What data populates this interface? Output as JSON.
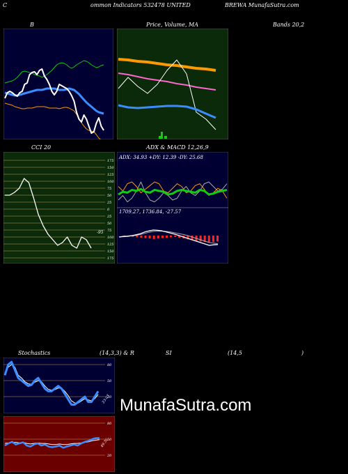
{
  "header": {
    "left": "C",
    "mid1": "ommon  Indicators 532478  UNITED",
    "right": "BREWA MunafaSutra.com"
  },
  "panel_titles": {
    "b": "B",
    "price": "Price,  Volume,  MA",
    "bands": "Bands 20,2",
    "cci": "CCI 20",
    "adx_macd": "ADX  & MACD 12,26,9",
    "stoch": "Stochastics",
    "stoch_params": "(14,3,3) & R",
    "si": "SI",
    "si_params": "(14,5",
    "close_paren": ")"
  },
  "adx_readout": "ADX: 34.93  +DY: 12.39  -DY: 25.68",
  "macd_readout": "1709.27,  1736.84,  -27.57",
  "cci_value_label": "-95",
  "cci_ticks": [
    "175",
    "150",
    "125",
    "100",
    "75",
    "50",
    "25",
    "0",
    "25",
    "50",
    "75",
    "100",
    "125",
    "150",
    "175"
  ],
  "stoch_ticks": [
    "80",
    "50",
    "20"
  ],
  "stoch_value_label": "23.03",
  "rsi_ticks": [
    "80",
    "50",
    "20"
  ],
  "rsi_value_label": "49.36",
  "watermark": "MunafaSutra.com",
  "colors": {
    "navy": "#000033",
    "green_panel": "#0a2a0a",
    "dark_red": "#6b0000",
    "blue_line": "#3a8cff",
    "orange_line": "#ff9900",
    "green_line": "#11cc11"
  },
  "chart_data": [
    {
      "id": "bollinger",
      "type": "line",
      "series": [
        {
          "role": "upper",
          "values": [
            78,
            77,
            76,
            75,
            73,
            70,
            66,
            62,
            61,
            62,
            63,
            64,
            66,
            67,
            68,
            70,
            68,
            66,
            63,
            60,
            56,
            52,
            50,
            49,
            50,
            52,
            55,
            57,
            55,
            52,
            50,
            48,
            46,
            47,
            49,
            52,
            54,
            56,
            55,
            53,
            52
          ]
        },
        {
          "role": "middle",
          "values": [
            92,
            93,
            94,
            95,
            96,
            96,
            95,
            94,
            93,
            92,
            91,
            90,
            89,
            88,
            88,
            88,
            87,
            86,
            86,
            86,
            86,
            87,
            88,
            88,
            88,
            87,
            86,
            87,
            88,
            91,
            94,
            98,
            102,
            106,
            109,
            112,
            115,
            118,
            120,
            121,
            122
          ]
        },
        {
          "role": "lower",
          "values": [
            107,
            108,
            109,
            110,
            112,
            113,
            114,
            115,
            115,
            114,
            114,
            114,
            113,
            112,
            112,
            112,
            112,
            113,
            114,
            114,
            114,
            114,
            115,
            114,
            113,
            113,
            114,
            116,
            118,
            123,
            130,
            135,
            140,
            144,
            146,
            147,
            148,
            152,
            157,
            160,
            162
          ]
        },
        {
          "role": "close",
          "values": [
            100,
            92,
            90,
            92,
            95,
            97,
            92,
            90,
            80,
            78,
            66,
            63,
            62,
            66,
            60,
            58,
            68,
            73,
            80,
            90,
            95,
            90,
            80,
            82,
            84,
            86,
            90,
            96,
            104,
            120,
            130,
            134,
            124,
            130,
            140,
            150,
            148,
            136,
            128,
            140,
            146
          ]
        }
      ]
    },
    {
      "id": "price_ma",
      "type": "line",
      "series": [
        {
          "role": "ma_long",
          "values": [
            44,
            45,
            47,
            48,
            50,
            52,
            53,
            55,
            57,
            58,
            60
          ]
        },
        {
          "role": "ma_mid",
          "values": [
            64,
            66,
            69,
            72,
            74,
            76,
            79,
            81,
            84,
            86,
            88
          ]
        },
        {
          "role": "close",
          "values": [
            86,
            70,
            83,
            93,
            80,
            60,
            45,
            65,
            120,
            130,
            145
          ]
        },
        {
          "role": "ma_short",
          "values": [
            110,
            113,
            114,
            113,
            112,
            111,
            111,
            112,
            116,
            122,
            128
          ]
        }
      ]
    },
    {
      "id": "cci",
      "type": "line",
      "values": [
        50,
        50,
        60,
        75,
        110,
        95,
        40,
        -20,
        -60,
        -90,
        -110,
        -130,
        -120,
        -100,
        -130,
        -140,
        -100,
        -110,
        -140
      ]
    },
    {
      "id": "adx_dmi",
      "type": "line",
      "series": [
        {
          "role": "adx",
          "values": [
            30,
            33,
            32,
            35,
            34,
            36,
            33,
            32,
            35,
            34,
            33,
            30,
            31,
            34,
            35,
            34,
            33,
            32,
            35,
            34,
            30,
            31,
            33,
            34,
            35
          ]
        },
        {
          "role": "plus_di",
          "values": [
            20,
            25,
            18,
            22,
            30,
            40,
            28,
            20,
            18,
            22,
            28,
            25,
            20,
            22,
            30,
            35,
            28,
            25,
            30,
            38,
            40,
            35,
            30,
            32,
            38
          ]
        },
        {
          "role": "minus_di",
          "values": [
            35,
            30,
            38,
            40,
            35,
            28,
            32,
            36,
            40,
            38,
            30,
            28,
            33,
            38,
            35,
            28,
            30,
            36,
            38,
            32,
            25,
            28,
            33,
            30,
            22
          ]
        }
      ]
    },
    {
      "id": "macd",
      "type": "line",
      "series": [
        {
          "role": "macd",
          "values": [
            0,
            2,
            3,
            5,
            8,
            12,
            18,
            22,
            25,
            24,
            22,
            18,
            14,
            10,
            5,
            0,
            -5,
            -10,
            -15,
            -20,
            -25,
            -30,
            -28,
            -27
          ]
        },
        {
          "role": "signal",
          "values": [
            0,
            1,
            2,
            4,
            6,
            9,
            13,
            17,
            20,
            21,
            21,
            20,
            18,
            15,
            12,
            9,
            5,
            0,
            -5,
            -10,
            -15,
            -20,
            -22,
            -24
          ]
        },
        {
          "role": "histogram",
          "values": [
            0,
            -2,
            -4,
            -6,
            -8,
            -10,
            -12,
            -14,
            -16,
            -14,
            -12,
            -10,
            -8,
            -6,
            -10,
            -14,
            -18,
            -22,
            -26,
            -28,
            -30,
            -32,
            -30,
            -28
          ]
        }
      ]
    },
    {
      "id": "stochastics",
      "type": "line",
      "ylim": [
        0,
        100
      ],
      "series": [
        {
          "role": "k",
          "values": [
            60,
            80,
            85,
            70,
            55,
            50,
            45,
            40,
            42,
            50,
            55,
            45,
            35,
            30,
            30,
            35,
            40,
            35,
            25,
            15,
            5,
            5,
            10,
            15,
            20,
            10,
            10,
            20,
            30
          ]
        },
        {
          "role": "d",
          "values": [
            65,
            75,
            80,
            75,
            60,
            55,
            48,
            44,
            43,
            47,
            50,
            48,
            40,
            34,
            32,
            33,
            36,
            36,
            30,
            22,
            12,
            8,
            8,
            12,
            16,
            14,
            12,
            16,
            24
          ]
        }
      ]
    },
    {
      "id": "rsi",
      "type": "line",
      "ylim": [
        0,
        100
      ],
      "series": [
        {
          "role": "rsi",
          "values": [
            38,
            42,
            45,
            40,
            42,
            44,
            38,
            36,
            40,
            42,
            38,
            40,
            36,
            35,
            36,
            38,
            34,
            36,
            38,
            40,
            38,
            42,
            45,
            47,
            50,
            52,
            52
          ]
        },
        {
          "role": "mfi",
          "values": [
            42,
            43,
            44,
            44,
            43,
            44,
            42,
            41,
            42,
            43,
            42,
            42,
            41,
            40,
            40,
            41,
            40,
            40,
            41,
            42,
            42,
            43,
            44,
            45,
            47,
            48,
            49
          ]
        }
      ]
    }
  ]
}
